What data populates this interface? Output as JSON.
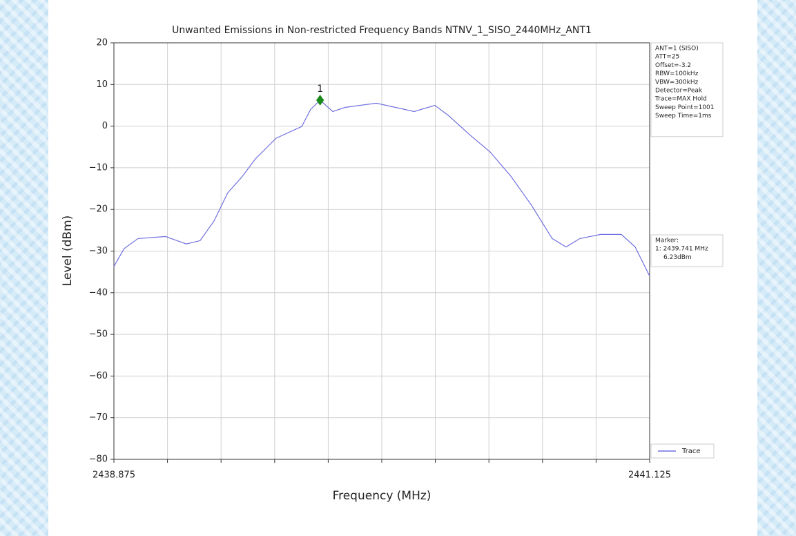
{
  "chart_data": {
    "type": "line",
    "title": "Unwanted Emissions in Non-restricted Frequency Bands NTNV_1_SISO_2440MHz_ANT1",
    "xlabel": "Frequency (MHz)",
    "ylabel": "Level (dBm)",
    "x": [
      2438.875,
      2438.918,
      2438.976,
      2439.092,
      2439.179,
      2439.237,
      2439.295,
      2439.353,
      2439.411,
      2439.469,
      2439.556,
      2439.664,
      2439.701,
      2439.741,
      2439.794,
      2439.846,
      2439.977,
      2440.136,
      2440.223,
      2440.281,
      2440.368,
      2440.455,
      2440.542,
      2440.629,
      2440.716,
      2440.774,
      2440.832,
      2440.919,
      2441.006,
      2441.064,
      2441.125
    ],
    "series": [
      {
        "name": "Trace",
        "color": "#6f6fe0",
        "values": [
          -33.7,
          -29.4,
          -27,
          -26.5,
          -28.3,
          -27.5,
          -22.8,
          -16,
          -12.3,
          -7.9,
          -2.9,
          -0.1,
          4,
          6.23,
          3.5,
          4.5,
          5.5,
          3.5,
          5,
          2.5,
          -2,
          -6.2,
          -12,
          -19,
          -27,
          -29,
          -27,
          -26,
          -26,
          -29,
          -36
        ]
      }
    ],
    "xlim": [
      2438.875,
      2441.125
    ],
    "ylim": [
      -80,
      20
    ],
    "xticks": [
      2438.875,
      {
        "value": 2439.1,
        "label": null
      },
      {
        "value": 2439.325,
        "label": null
      },
      {
        "value": 2439.55,
        "label": null
      },
      {
        "value": 2439.775,
        "label": null
      },
      {
        "value": 2440.0,
        "label": null
      },
      {
        "value": 2440.225,
        "label": null
      },
      {
        "value": 2440.45,
        "label": null
      },
      {
        "value": 2440.675,
        "label": null
      },
      {
        "value": 2440.9,
        "label": null
      },
      2441.125
    ],
    "yticks": [
      {
        "value": -80,
        "label": "−80"
      },
      {
        "value": -70,
        "label": "−70"
      },
      {
        "value": -60,
        "label": "−60"
      },
      {
        "value": -50,
        "label": "−50"
      },
      {
        "value": -40,
        "label": "−40"
      },
      {
        "value": -30,
        "label": "−30"
      },
      {
        "value": -20,
        "label": "−20"
      },
      {
        "value": -10,
        "label": "−10"
      },
      0,
      10,
      20
    ],
    "grid": true,
    "legend": "lower right",
    "settings_box": [
      "ANT=1 (SISO)",
      "ATT=25",
      "Offset=-3.2",
      "RBW=100kHz",
      "VBW=300kHz",
      "Detector=Peak",
      "Trace=MAX Hold",
      "Sweep Point=1001",
      "Sweep Time=1ms"
    ],
    "marker": {
      "label": "1",
      "x": 2439.741,
      "y": 6.23,
      "color": "#1a8a1a",
      "text": [
        "Marker:",
        "1: 2439.741 MHz",
        "6.23dBm"
      ]
    }
  }
}
